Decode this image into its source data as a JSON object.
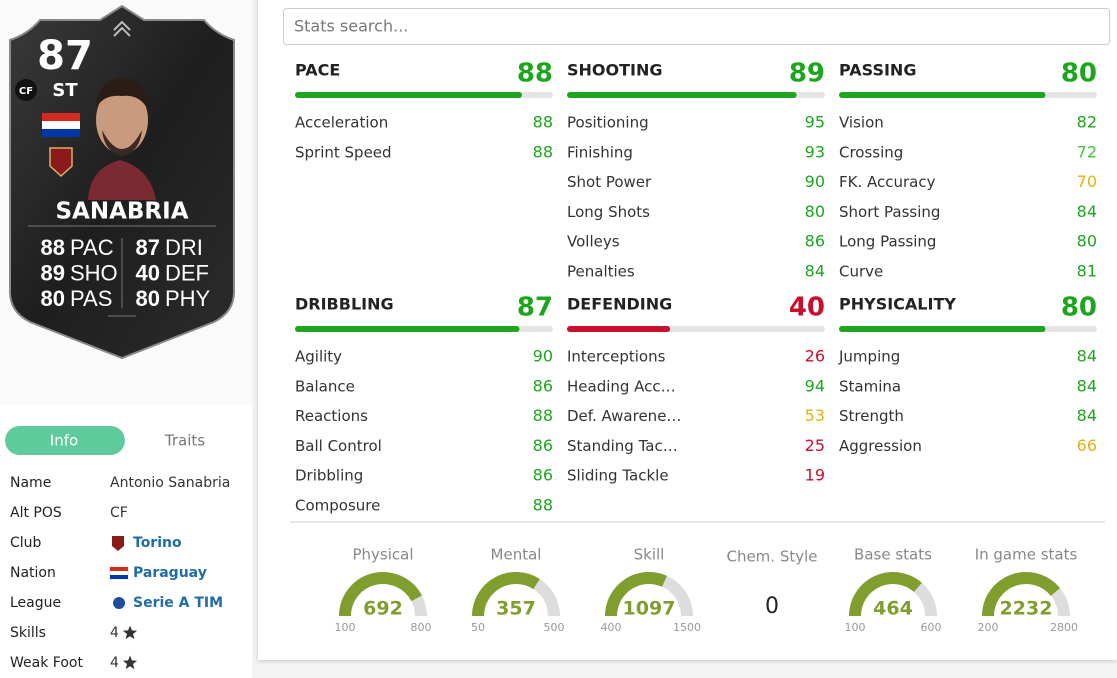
{
  "card": {
    "rating": 87,
    "position": "ST",
    "alt_badge": "CF",
    "name": "SANABRIA",
    "stats": [
      {
        "value": 88,
        "label": "PAC"
      },
      {
        "value": 89,
        "label": "SHO"
      },
      {
        "value": 80,
        "label": "PAS"
      },
      {
        "value": 87,
        "label": "DRI"
      },
      {
        "value": 40,
        "label": "DEF"
      },
      {
        "value": 80,
        "label": "PHY"
      }
    ]
  },
  "tabs": [
    "Info",
    "Traits"
  ],
  "info": [
    {
      "label": "Name",
      "value": "Antonio Sanabria"
    },
    {
      "label": "Alt POS",
      "value": "CF"
    },
    {
      "label": "Club",
      "value": "Torino"
    },
    {
      "label": "Nation",
      "value": "Paraguay"
    },
    {
      "label": "League",
      "value": "Serie A TIM"
    },
    {
      "label": "Skills",
      "value": 4
    },
    {
      "label": "Weak Foot",
      "value": 4
    }
  ],
  "search_placeholder": "Stats search...",
  "groups": [
    {
      "name": "PACE",
      "value": 88,
      "stats": [
        {
          "name": "Acceleration",
          "value": 88
        },
        {
          "name": "Sprint Speed",
          "value": 88
        }
      ]
    },
    {
      "name": "SHOOTING",
      "value": 89,
      "stats": [
        {
          "name": "Positioning",
          "value": 95
        },
        {
          "name": "Finishing",
          "value": 93
        },
        {
          "name": "Shot Power",
          "value": 90
        },
        {
          "name": "Long Shots",
          "value": 80
        },
        {
          "name": "Volleys",
          "value": 86
        },
        {
          "name": "Penalties",
          "value": 84
        }
      ]
    },
    {
      "name": "PASSING",
      "value": 80,
      "stats": [
        {
          "name": "Vision",
          "value": 82
        },
        {
          "name": "Crossing",
          "value": 72
        },
        {
          "name": "FK. Accuracy",
          "value": 70
        },
        {
          "name": "Short Passing",
          "value": 84
        },
        {
          "name": "Long Passing",
          "value": 80
        },
        {
          "name": "Curve",
          "value": 81
        }
      ]
    },
    {
      "name": "DRIBBLING",
      "value": 87,
      "stats": [
        {
          "name": "Agility",
          "value": 90
        },
        {
          "name": "Balance",
          "value": 86
        },
        {
          "name": "Reactions",
          "value": 88
        },
        {
          "name": "Ball Control",
          "value": 86
        },
        {
          "name": "Dribbling",
          "value": 86
        },
        {
          "name": "Composure",
          "value": 88
        }
      ]
    },
    {
      "name": "DEFENDING",
      "value": 40,
      "stats": [
        {
          "name": "Interceptions",
          "value": 26
        },
        {
          "name": "Heading Acc…",
          "value": 94
        },
        {
          "name": "Def. Awarene…",
          "value": 53
        },
        {
          "name": "Standing Tac…",
          "value": 25
        },
        {
          "name": "Sliding Tackle",
          "value": 19
        }
      ]
    },
    {
      "name": "PHYSICALITY",
      "value": 80,
      "stats": [
        {
          "name": "Jumping",
          "value": 84
        },
        {
          "name": "Stamina",
          "value": 84
        },
        {
          "name": "Strength",
          "value": 84
        },
        {
          "name": "Aggression",
          "value": 66
        }
      ]
    }
  ],
  "gauges": [
    {
      "label": "Physical",
      "value": 692,
      "min": 100,
      "max": 800
    },
    {
      "label": "Mental",
      "value": 357,
      "min": 50,
      "max": 500
    },
    {
      "label": "Skill",
      "value": 1097,
      "min": 400,
      "max": 1500
    },
    {
      "label": "Chem. Style",
      "value": 0
    },
    {
      "label": "Base stats",
      "value": 464,
      "min": 100,
      "max": 600
    },
    {
      "label": "In game stats",
      "value": 2232,
      "min": 200,
      "max": 2800
    }
  ]
}
